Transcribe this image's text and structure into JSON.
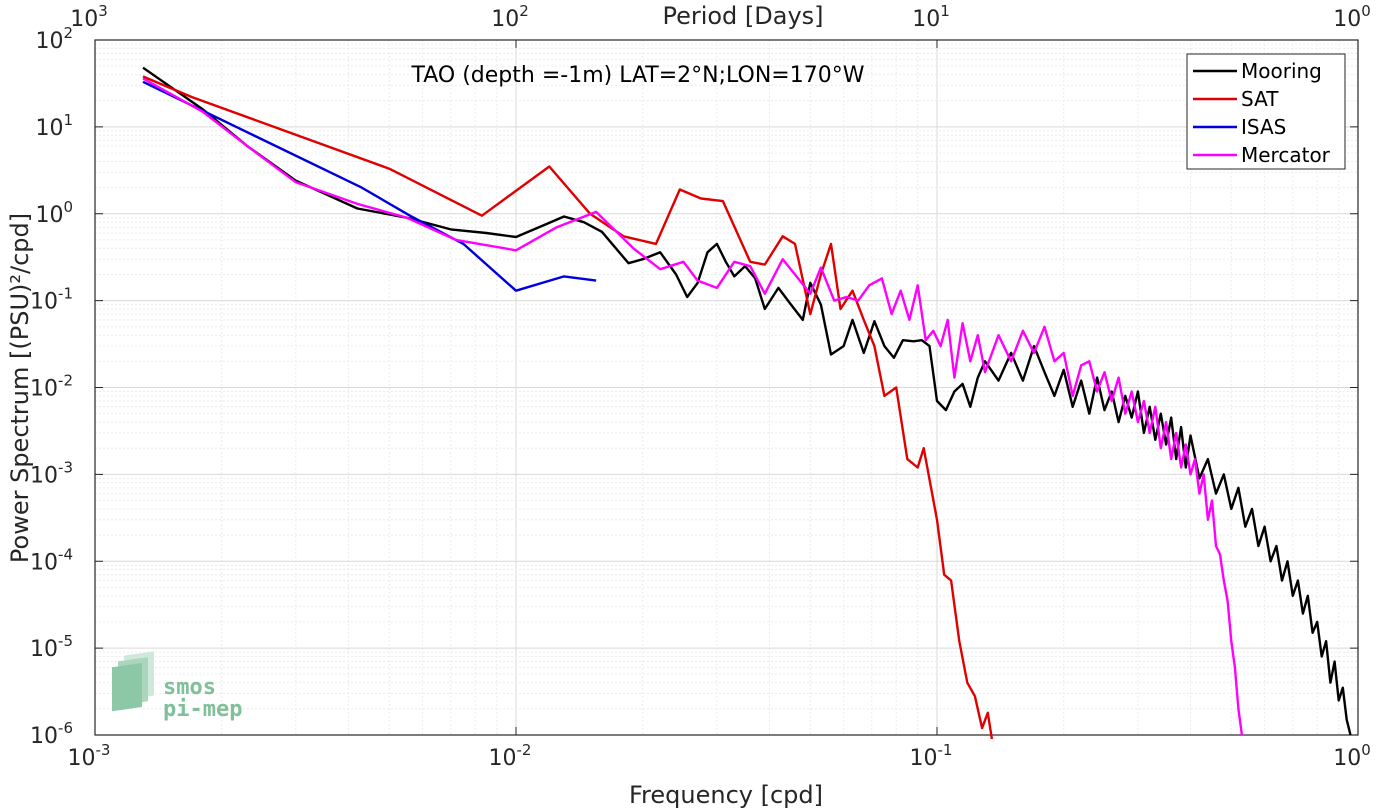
{
  "chart_data": {
    "type": "line",
    "title": "TAO (depth =-1m) LAT=2°N;LON=170°W",
    "xlabel": "Frequency [cpd]",
    "ylabel": "Power Spectrum [(PSU)²/cpd]",
    "top_xlabel": "Period [Days]",
    "x_scale": "log",
    "y_scale": "log",
    "xlim": [
      0.001,
      1
    ],
    "ylim": [
      1e-06,
      100
    ],
    "grid": true,
    "legend_position": "top-right",
    "x_ticks": [
      {
        "base": "10",
        "exp": "-3"
      },
      {
        "base": "10",
        "exp": "-2"
      },
      {
        "base": "10",
        "exp": "-1"
      },
      {
        "base": "10",
        "exp": "0"
      }
    ],
    "top_x_ticks": [
      {
        "base": "10",
        "exp": "3"
      },
      {
        "base": "10",
        "exp": "2"
      },
      {
        "base": "10",
        "exp": "1"
      },
      {
        "base": "10",
        "exp": "0"
      }
    ],
    "y_ticks": [
      {
        "base": "10",
        "exp": "-6"
      },
      {
        "base": "10",
        "exp": "-5"
      },
      {
        "base": "10",
        "exp": "-4"
      },
      {
        "base": "10",
        "exp": "-3"
      },
      {
        "base": "10",
        "exp": "-2"
      },
      {
        "base": "10",
        "exp": "-1"
      },
      {
        "base": "10",
        "exp": "0"
      },
      {
        "base": "10",
        "exp": "1"
      },
      {
        "base": "10",
        "exp": "2"
      }
    ],
    "series": [
      {
        "name": "Mooring",
        "color": "#000000",
        "points": [
          [
            0.0013,
            48
          ],
          [
            0.0018,
            16
          ],
          [
            0.0023,
            6
          ],
          [
            0.003,
            2.4
          ],
          [
            0.0042,
            1.15
          ],
          [
            0.0055,
            0.9
          ],
          [
            0.007,
            0.66
          ],
          [
            0.0085,
            0.6
          ],
          [
            0.01,
            0.54
          ],
          [
            0.0115,
            0.72
          ],
          [
            0.013,
            0.93
          ],
          [
            0.0145,
            0.8
          ],
          [
            0.016,
            0.62
          ],
          [
            0.0185,
            0.27
          ],
          [
            0.02,
            0.3
          ],
          [
            0.022,
            0.36
          ],
          [
            0.024,
            0.2
          ],
          [
            0.0255,
            0.11
          ],
          [
            0.027,
            0.16
          ],
          [
            0.0285,
            0.36
          ],
          [
            0.03,
            0.45
          ],
          [
            0.0315,
            0.28
          ],
          [
            0.033,
            0.19
          ],
          [
            0.035,
            0.25
          ],
          [
            0.037,
            0.18
          ],
          [
            0.039,
            0.08
          ],
          [
            0.042,
            0.14
          ],
          [
            0.045,
            0.09
          ],
          [
            0.048,
            0.06
          ],
          [
            0.05,
            0.16
          ],
          [
            0.053,
            0.09
          ],
          [
            0.056,
            0.024
          ],
          [
            0.06,
            0.03
          ],
          [
            0.063,
            0.06
          ],
          [
            0.067,
            0.025
          ],
          [
            0.071,
            0.058
          ],
          [
            0.075,
            0.03
          ],
          [
            0.079,
            0.022
          ],
          [
            0.083,
            0.035
          ],
          [
            0.088,
            0.034
          ],
          [
            0.092,
            0.035
          ],
          [
            0.096,
            0.03
          ],
          [
            0.1,
            0.007
          ],
          [
            0.105,
            0.0055
          ],
          [
            0.11,
            0.009
          ],
          [
            0.115,
            0.011
          ],
          [
            0.12,
            0.006
          ],
          [
            0.125,
            0.013
          ],
          [
            0.13,
            0.02
          ],
          [
            0.14,
            0.012
          ],
          [
            0.15,
            0.025
          ],
          [
            0.16,
            0.012
          ],
          [
            0.17,
            0.03
          ],
          [
            0.18,
            0.015
          ],
          [
            0.19,
            0.008
          ],
          [
            0.2,
            0.016
          ],
          [
            0.21,
            0.006
          ],
          [
            0.22,
            0.012
          ],
          [
            0.23,
            0.005
          ],
          [
            0.24,
            0.013
          ],
          [
            0.25,
            0.0055
          ],
          [
            0.26,
            0.009
          ],
          [
            0.27,
            0.004
          ],
          [
            0.28,
            0.008
          ],
          [
            0.29,
            0.0045
          ],
          [
            0.3,
            0.009
          ],
          [
            0.31,
            0.003
          ],
          [
            0.32,
            0.006
          ],
          [
            0.33,
            0.0025
          ],
          [
            0.34,
            0.005
          ],
          [
            0.35,
            0.0022
          ],
          [
            0.36,
            0.0045
          ],
          [
            0.37,
            0.0015
          ],
          [
            0.38,
            0.0035
          ],
          [
            0.39,
            0.0012
          ],
          [
            0.4,
            0.0028
          ],
          [
            0.42,
            0.0009
          ],
          [
            0.44,
            0.0015
          ],
          [
            0.46,
            0.0006
          ],
          [
            0.48,
            0.001
          ],
          [
            0.5,
            0.0004
          ],
          [
            0.52,
            0.0007
          ],
          [
            0.54,
            0.00025
          ],
          [
            0.56,
            0.0004
          ],
          [
            0.58,
            0.00015
          ],
          [
            0.6,
            0.00025
          ],
          [
            0.62,
            0.0001
          ],
          [
            0.64,
            0.00015
          ],
          [
            0.66,
            6e-05
          ],
          [
            0.68,
            0.0001
          ],
          [
            0.7,
            4e-05
          ],
          [
            0.72,
            6e-05
          ],
          [
            0.74,
            2.5e-05
          ],
          [
            0.76,
            4e-05
          ],
          [
            0.78,
            1.5e-05
          ],
          [
            0.8,
            2e-05
          ],
          [
            0.82,
            8e-06
          ],
          [
            0.84,
            1.2e-05
          ],
          [
            0.86,
            4e-06
          ],
          [
            0.88,
            7e-06
          ],
          [
            0.9,
            2.5e-06
          ],
          [
            0.92,
            3.5e-06
          ],
          [
            0.94,
            1.5e-06
          ],
          [
            0.96,
            1e-06
          ]
        ]
      },
      {
        "name": "SAT",
        "color": "#e00000",
        "points": [
          [
            0.0013,
            38
          ],
          [
            0.0017,
            22
          ],
          [
            0.005,
            3.3
          ],
          [
            0.0083,
            0.95
          ],
          [
            0.012,
            3.5
          ],
          [
            0.015,
            1.0
          ],
          [
            0.018,
            0.55
          ],
          [
            0.0215,
            0.45
          ],
          [
            0.0245,
            1.9
          ],
          [
            0.0275,
            1.5
          ],
          [
            0.031,
            1.4
          ],
          [
            0.036,
            0.28
          ],
          [
            0.039,
            0.26
          ],
          [
            0.043,
            0.55
          ],
          [
            0.046,
            0.45
          ],
          [
            0.05,
            0.07
          ],
          [
            0.053,
            0.2
          ],
          [
            0.056,
            0.45
          ],
          [
            0.059,
            0.08
          ],
          [
            0.063,
            0.13
          ],
          [
            0.067,
            0.06
          ],
          [
            0.071,
            0.03
          ],
          [
            0.075,
            0.008
          ],
          [
            0.08,
            0.01
          ],
          [
            0.085,
            0.0015
          ],
          [
            0.09,
            0.0012
          ],
          [
            0.093,
            0.002
          ],
          [
            0.1,
            0.0003
          ],
          [
            0.104,
            7e-05
          ],
          [
            0.108,
            6e-05
          ],
          [
            0.113,
            1.2e-05
          ],
          [
            0.118,
            4e-06
          ],
          [
            0.123,
            2.8e-06
          ],
          [
            0.128,
            1.2e-06
          ],
          [
            0.132,
            1.8e-06
          ],
          [
            0.135,
            9e-07
          ]
        ]
      },
      {
        "name": "ISAS",
        "color": "#0000dd",
        "points": [
          [
            0.0013,
            33
          ],
          [
            0.0043,
            2.0
          ],
          [
            0.0056,
            0.95
          ],
          [
            0.0075,
            0.45
          ],
          [
            0.01,
            0.13
          ],
          [
            0.013,
            0.19
          ],
          [
            0.0155,
            0.17
          ]
        ]
      },
      {
        "name": "Mercator",
        "color": "#ff00ff",
        "points": [
          [
            0.0013,
            36
          ],
          [
            0.0018,
            15
          ],
          [
            0.0023,
            6
          ],
          [
            0.003,
            2.3
          ],
          [
            0.0042,
            1.3
          ],
          [
            0.0055,
            0.9
          ],
          [
            0.0072,
            0.5
          ],
          [
            0.01,
            0.38
          ],
          [
            0.0125,
            0.7
          ],
          [
            0.0155,
            1.05
          ],
          [
            0.019,
            0.4
          ],
          [
            0.022,
            0.23
          ],
          [
            0.025,
            0.28
          ],
          [
            0.027,
            0.17
          ],
          [
            0.03,
            0.14
          ],
          [
            0.033,
            0.28
          ],
          [
            0.036,
            0.25
          ],
          [
            0.039,
            0.12
          ],
          [
            0.043,
            0.3
          ],
          [
            0.046,
            0.2
          ],
          [
            0.05,
            0.12
          ],
          [
            0.053,
            0.24
          ],
          [
            0.057,
            0.1
          ],
          [
            0.061,
            0.11
          ],
          [
            0.065,
            0.1
          ],
          [
            0.069,
            0.15
          ],
          [
            0.074,
            0.18
          ],
          [
            0.078,
            0.07
          ],
          [
            0.082,
            0.13
          ],
          [
            0.086,
            0.06
          ],
          [
            0.09,
            0.15
          ],
          [
            0.094,
            0.035
          ],
          [
            0.098,
            0.045
          ],
          [
            0.102,
            0.03
          ],
          [
            0.106,
            0.06
          ],
          [
            0.11,
            0.013
          ],
          [
            0.115,
            0.055
          ],
          [
            0.12,
            0.02
          ],
          [
            0.125,
            0.04
          ],
          [
            0.13,
            0.015
          ],
          [
            0.14,
            0.04
          ],
          [
            0.15,
            0.02
          ],
          [
            0.16,
            0.045
          ],
          [
            0.17,
            0.025
          ],
          [
            0.18,
            0.05
          ],
          [
            0.19,
            0.02
          ],
          [
            0.2,
            0.025
          ],
          [
            0.21,
            0.008
          ],
          [
            0.22,
            0.018
          ],
          [
            0.23,
            0.02
          ],
          [
            0.24,
            0.009
          ],
          [
            0.25,
            0.015
          ],
          [
            0.26,
            0.007
          ],
          [
            0.27,
            0.013
          ],
          [
            0.28,
            0.005
          ],
          [
            0.29,
            0.009
          ],
          [
            0.3,
            0.004
          ],
          [
            0.31,
            0.007
          ],
          [
            0.32,
            0.003
          ],
          [
            0.33,
            0.006
          ],
          [
            0.34,
            0.002
          ],
          [
            0.35,
            0.004
          ],
          [
            0.36,
            0.0015
          ],
          [
            0.37,
            0.003
          ],
          [
            0.38,
            0.0012
          ],
          [
            0.39,
            0.0022
          ],
          [
            0.4,
            0.001
          ],
          [
            0.41,
            0.0015
          ],
          [
            0.42,
            0.0006
          ],
          [
            0.43,
            0.001
          ],
          [
            0.44,
            0.0003
          ],
          [
            0.45,
            0.0005
          ],
          [
            0.46,
            0.00015
          ],
          [
            0.47,
            0.00012
          ],
          [
            0.48,
            6e-05
          ],
          [
            0.49,
            3.5e-05
          ],
          [
            0.5,
            1.2e-05
          ],
          [
            0.51,
            6e-06
          ],
          [
            0.52,
            2e-06
          ],
          [
            0.53,
            1e-06
          ]
        ]
      }
    ]
  },
  "logo": {
    "line1": "smos",
    "line2": "pi-mep",
    "color": "#7fbf9a"
  }
}
